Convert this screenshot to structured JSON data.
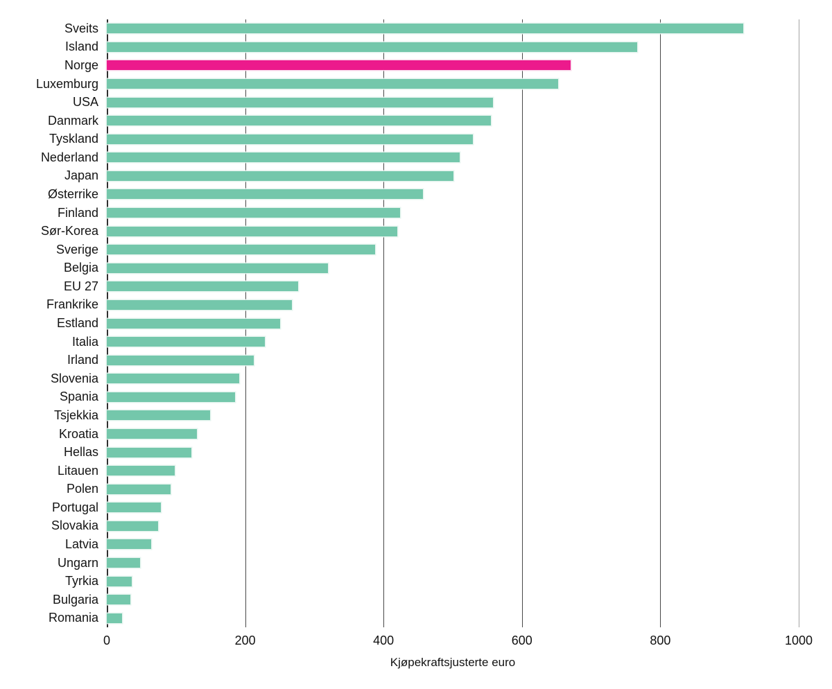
{
  "chart_data": {
    "type": "bar",
    "orientation": "horizontal",
    "title": "",
    "xlabel": "Kjøpekraftsjusterte euro",
    "ylabel": "",
    "xlim": [
      0,
      1000
    ],
    "xticks": [
      0,
      200,
      400,
      600,
      800,
      1000
    ],
    "grid": "vertical",
    "legend": "none",
    "bar_color": "#74c7ab",
    "highlight_color": "#ec1a8c",
    "highlight_category": "Norge",
    "categories": [
      "Sveits",
      "Island",
      "Norge",
      "Luxemburg",
      "USA",
      "Danmark",
      "Tyskland",
      "Nederland",
      "Japan",
      "Østerrike",
      "Finland",
      "Sør-Korea",
      "Sverige",
      "Belgia",
      "EU 27",
      "Frankrike",
      "Estland",
      "Italia",
      "Irland",
      "Slovenia",
      "Spania",
      "Tsjekkia",
      "Kroatia",
      "Hellas",
      "Litauen",
      "Polen",
      "Portugal",
      "Slovakia",
      "Latvia",
      "Ungarn",
      "Tyrkia",
      "Bulgaria",
      "Romania"
    ],
    "values": [
      920,
      767,
      670,
      652,
      558,
      555,
      529,
      510,
      501,
      457,
      424,
      420,
      388,
      320,
      277,
      268,
      251,
      228,
      212,
      191,
      185,
      149,
      130,
      122,
      98,
      92,
      78,
      74,
      64,
      48,
      36,
      34,
      22
    ]
  }
}
